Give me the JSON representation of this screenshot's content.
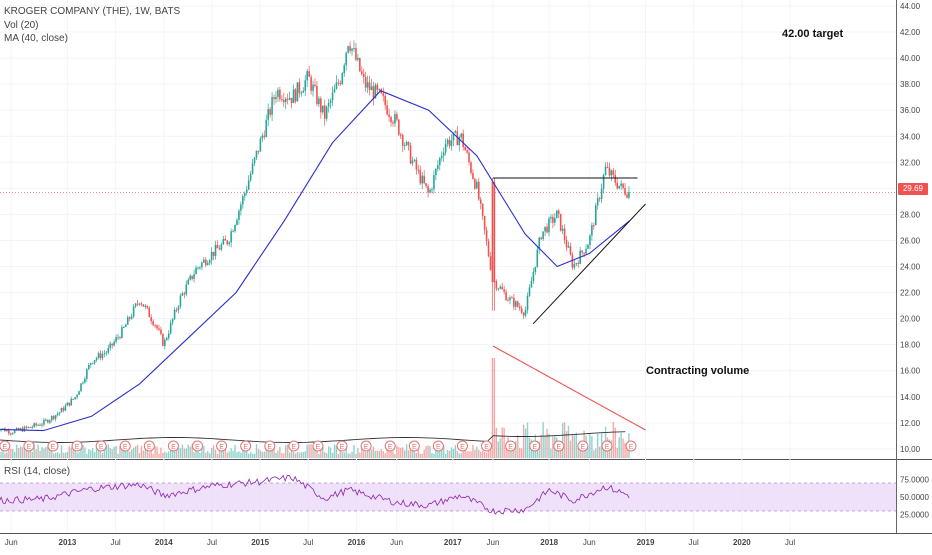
{
  "header": {
    "symbol": "KROGER COMPANY (THE), 1W, BATS",
    "vol_label": "Vol (20)",
    "ma_label": "MA (40, close)",
    "rsi_label": "RSI (14, close)"
  },
  "annotations": {
    "target": "42.00 target",
    "volume_note": "Contracting volume",
    "last_price": "29.69"
  },
  "colors": {
    "up": "#26a69a",
    "down": "#ef5350",
    "ma": "#2b2fc7",
    "rsi": "#8e24aa",
    "rsi_band": "#ead9f7",
    "trend": "#111111",
    "volume_trend": "#ef5350",
    "earnings_marker": "#e57373"
  },
  "chart_data": {
    "type": "candlestick",
    "title": "KROGER COMPANY (THE), 1W, BATS",
    "price_axis": {
      "min": 9,
      "max": 44,
      "ticks": [
        "10.00",
        "12.00",
        "14.00",
        "16.00",
        "18.00",
        "20.00",
        "22.00",
        "24.00",
        "26.00",
        "28.00",
        "30.00",
        "32.00",
        "34.00",
        "36.00",
        "38.00",
        "40.00",
        "42.00",
        "44.00"
      ]
    },
    "rsi_axis": {
      "ticks": [
        "25.0000",
        "50.0000",
        "75.0000"
      ],
      "band": [
        30,
        70
      ]
    },
    "time_axis": {
      "ticks": [
        "Jun",
        "2013",
        "Jul",
        "2014",
        "Jul",
        "2015",
        "Jul",
        "2016",
        "Jun",
        "2017",
        "Jun",
        "2018",
        "Jun",
        "2019",
        "Jul",
        "2020",
        "Jul"
      ]
    },
    "price_series": [
      {
        "date": "2012-04",
        "close": 11.7
      },
      {
        "date": "2012-06",
        "close": 11.3
      },
      {
        "date": "2012-08",
        "close": 11.6
      },
      {
        "date": "2012-10",
        "close": 12.0
      },
      {
        "date": "2012-12",
        "close": 12.8
      },
      {
        "date": "2013-02",
        "close": 14.0
      },
      {
        "date": "2013-04",
        "close": 16.8
      },
      {
        "date": "2013-06",
        "close": 17.5
      },
      {
        "date": "2013-08",
        "close": 19.2
      },
      {
        "date": "2013-10",
        "close": 21.5
      },
      {
        "date": "2013-12",
        "close": 19.5
      },
      {
        "date": "2014-01",
        "close": 18.0
      },
      {
        "date": "2014-03",
        "close": 21.5
      },
      {
        "date": "2014-05",
        "close": 23.8
      },
      {
        "date": "2014-07",
        "close": 25.0
      },
      {
        "date": "2014-09",
        "close": 26.0
      },
      {
        "date": "2014-11",
        "close": 29.5
      },
      {
        "date": "2015-01",
        "close": 33.5
      },
      {
        "date": "2015-03",
        "close": 37.5
      },
      {
        "date": "2015-05",
        "close": 37.0
      },
      {
        "date": "2015-07",
        "close": 38.5
      },
      {
        "date": "2015-09",
        "close": 35.5
      },
      {
        "date": "2015-11",
        "close": 38.5
      },
      {
        "date": "2015-12",
        "close": 41.5
      },
      {
        "date": "2016-02",
        "close": 38.0
      },
      {
        "date": "2016-04",
        "close": 37.0
      },
      {
        "date": "2016-06",
        "close": 35.0
      },
      {
        "date": "2016-08",
        "close": 32.0
      },
      {
        "date": "2016-10",
        "close": 29.5
      },
      {
        "date": "2016-12",
        "close": 33.5
      },
      {
        "date": "2017-02",
        "close": 34.0
      },
      {
        "date": "2017-04",
        "close": 30.0
      },
      {
        "date": "2017-06",
        "close": 23.0
      },
      {
        "date": "2017-08",
        "close": 21.5
      },
      {
        "date": "2017-10",
        "close": 20.5
      },
      {
        "date": "2017-12",
        "close": 26.5
      },
      {
        "date": "2018-02",
        "close": 28.0
      },
      {
        "date": "2018-04",
        "close": 24.0
      },
      {
        "date": "2018-06",
        "close": 26.0
      },
      {
        "date": "2018-08",
        "close": 31.5
      },
      {
        "date": "2018-10",
        "close": 30.0
      },
      {
        "date": "2018-11",
        "close": 29.69
      }
    ],
    "ma_series": [
      {
        "date": "2012-04",
        "value": 11.5
      },
      {
        "date": "2012-10",
        "value": 11.4
      },
      {
        "date": "2013-04",
        "value": 12.5
      },
      {
        "date": "2013-10",
        "value": 15.0
      },
      {
        "date": "2014-04",
        "value": 18.5
      },
      {
        "date": "2014-10",
        "value": 22.0
      },
      {
        "date": "2015-04",
        "value": 27.5
      },
      {
        "date": "2015-10",
        "value": 33.5
      },
      {
        "date": "2016-04",
        "value": 37.5
      },
      {
        "date": "2016-10",
        "value": 36.0
      },
      {
        "date": "2017-04",
        "value": 32.5
      },
      {
        "date": "2017-10",
        "value": 26.5
      },
      {
        "date": "2018-02",
        "value": 24.0
      },
      {
        "date": "2018-06",
        "value": 25.0
      },
      {
        "date": "2018-11",
        "value": 27.5
      }
    ],
    "rsi_series": [
      {
        "date": "2012-04",
        "value": 45
      },
      {
        "date": "2012-10",
        "value": 47
      },
      {
        "date": "2013-04",
        "value": 62
      },
      {
        "date": "2013-10",
        "value": 68
      },
      {
        "date": "2014-01",
        "value": 52
      },
      {
        "date": "2014-07",
        "value": 66
      },
      {
        "date": "2015-01",
        "value": 72
      },
      {
        "date": "2015-05",
        "value": 78
      },
      {
        "date": "2015-09",
        "value": 48
      },
      {
        "date": "2015-12",
        "value": 60
      },
      {
        "date": "2016-06",
        "value": 42
      },
      {
        "date": "2016-10",
        "value": 38
      },
      {
        "date": "2017-02",
        "value": 52
      },
      {
        "date": "2017-06",
        "value": 30
      },
      {
        "date": "2017-10",
        "value": 32
      },
      {
        "date": "2018-01",
        "value": 60
      },
      {
        "date": "2018-04",
        "value": 45
      },
      {
        "date": "2018-08",
        "value": 65
      },
      {
        "date": "2018-11",
        "value": 52
      }
    ],
    "drawings": {
      "resistance": {
        "from": {
          "date": "2017-06",
          "price": 30.8
        },
        "to": {
          "date": "2018-12",
          "price": 30.8
        }
      },
      "support": {
        "from": {
          "date": "2017-11",
          "price": 19.6
        },
        "to": {
          "date": "2019-01",
          "price": 28.8
        }
      },
      "volume_trend": "descending"
    }
  }
}
